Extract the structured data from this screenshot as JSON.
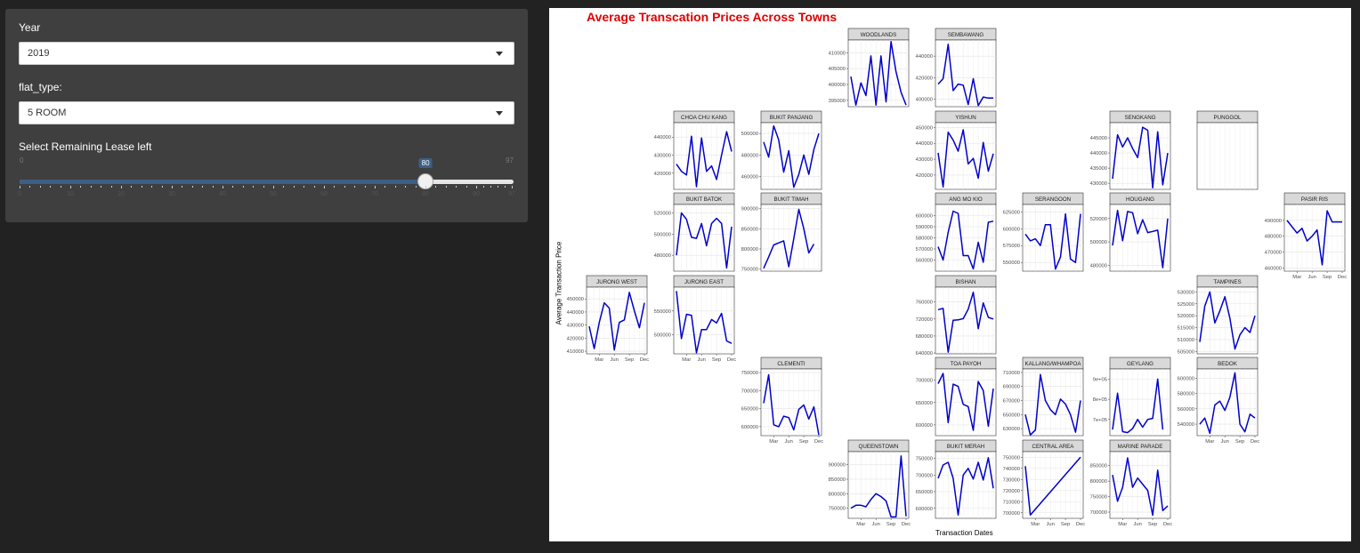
{
  "sidebar": {
    "year_label": "Year",
    "year_value": "2019",
    "flat_type_label": "flat_type:",
    "flat_type_value": "5 ROOM",
    "lease_label": "Select Remaining Lease left",
    "lease_min": 0,
    "lease_max": 97,
    "lease_value": 80,
    "lease_grid": [
      "0",
      "10",
      "20",
      "30",
      "40",
      "50",
      "60",
      "70",
      "80",
      "90",
      "97"
    ]
  },
  "chart_data": {
    "type": "line",
    "title": "Average Transcation Prices Across Towns",
    "xlabel": "Transaction Dates",
    "ylabel": "Average Transaction Price",
    "series_color": "#0000cc",
    "x_ticks": [
      "Mar",
      "Jun",
      "Sep",
      "Dec"
    ],
    "facets": [
      {
        "name": "WOODLANDS",
        "col": 3,
        "row": 0,
        "ylim": [
          393000,
          414000
        ],
        "yticks": [
          395000,
          400000,
          405000,
          410000
        ],
        "yfmt": "n",
        "xaxis": false,
        "values": [
          402500,
          393500,
          400500,
          396500,
          409000,
          393500,
          409000,
          394500,
          413500,
          404000,
          397500,
          393500
        ]
      },
      {
        "name": "SEMBAWANG",
        "col": 4,
        "row": 0,
        "ylim": [
          393000,
          455000
        ],
        "yticks": [
          400000,
          420000,
          440000
        ],
        "yfmt": "n",
        "xaxis": false,
        "values": [
          414000,
          419000,
          451000,
          408000,
          414000,
          413000,
          395000,
          419000,
          394000,
          402000,
          401000,
          401000
        ]
      },
      {
        "name": "CHOA CHU KANG",
        "col": 1,
        "row": 1,
        "ylim": [
          411000,
          448000
        ],
        "yticks": [
          420000,
          430000,
          440000
        ],
        "yfmt": "n",
        "xaxis": false,
        "values": [
          425000,
          421000,
          419000,
          440500,
          412500,
          439500,
          421000,
          424000,
          416500,
          430000,
          443000,
          432000
        ]
      },
      {
        "name": "BUKIT PANJANG",
        "col": 2,
        "row": 1,
        "ylim": [
          448000,
          510000
        ],
        "yticks": [
          460000,
          480000,
          500000
        ],
        "yfmt": "n",
        "xaxis": false,
        "values": [
          492000,
          478000,
          507000,
          494000,
          464000,
          484000,
          450000,
          462000,
          480000,
          462000,
          485000,
          500000
        ]
      },
      {
        "name": "YISHUN",
        "col": 4,
        "row": 1,
        "ylim": [
          411000,
          453000
        ],
        "yticks": [
          420000,
          430000,
          440000,
          450000
        ],
        "yfmt": "n",
        "xaxis": false,
        "values": [
          434000,
          412500,
          447000,
          442000,
          435000,
          448500,
          427000,
          430500,
          418000,
          440500,
          422500,
          433500
        ]
      },
      {
        "name": "SENGKANG",
        "col": 6,
        "row": 1,
        "ylim": [
          428000,
          450000
        ],
        "yticks": [
          430000,
          435000,
          440000,
          445000
        ],
        "yfmt": "n",
        "xaxis": false,
        "values": [
          431500,
          446000,
          442000,
          445000,
          441500,
          438500,
          448500,
          447500,
          428500,
          447000,
          429500,
          440000
        ]
      },
      {
        "name": "PUNGGOL",
        "col": 7,
        "row": 1,
        "ylim": [
          0,
          1
        ],
        "yticks": [],
        "yfmt": "n",
        "xaxis": false,
        "values": []
      },
      {
        "name": "BUKIT BATOK",
        "col": 1,
        "row": 2,
        "ylim": [
          465000,
          528000
        ],
        "yticks": [
          480000,
          500000,
          520000
        ],
        "yfmt": "n",
        "xaxis": false,
        "values": [
          480000,
          520000,
          514000,
          497000,
          496000,
          510000,
          489000,
          510000,
          515000,
          510000,
          468000,
          507000
        ]
      },
      {
        "name": "BUKIT TIMAH",
        "col": 2,
        "row": 2,
        "ylim": [
          745000,
          910000
        ],
        "yticks": [
          750000,
          800000,
          850000,
          900000
        ],
        "yfmt": "n",
        "xaxis": false,
        "values": [
          752000,
          780000,
          810000,
          815000,
          820000,
          756000,
          825000,
          898000,
          850000,
          790000,
          812000,
          null
        ]
      },
      {
        "name": "ANG MO KIO",
        "col": 4,
        "row": 2,
        "ylim": [
          550000,
          610000
        ],
        "yticks": [
          560000,
          570000,
          580000,
          590000,
          600000
        ],
        "yfmt": "n",
        "xaxis": false,
        "values": [
          572000,
          560000,
          585000,
          604000,
          602000,
          564000,
          564000,
          552000,
          576000,
          558000,
          594000,
          595000
        ]
      },
      {
        "name": "SERANGOON",
        "col": 5,
        "row": 2,
        "ylim": [
          537000,
          636000
        ],
        "yticks": [
          550000,
          575000,
          600000,
          625000
        ],
        "yfmt": "n",
        "xaxis": false,
        "values": [
          592000,
          582000,
          585000,
          575000,
          606000,
          606000,
          540000,
          558000,
          622000,
          555000,
          550000,
          622000
        ]
      },
      {
        "name": "HOUGANG",
        "col": 6,
        "row": 2,
        "ylim": [
          475000,
          532000
        ],
        "yticks": [
          480000,
          500000,
          520000
        ],
        "yfmt": "n",
        "xaxis": false,
        "values": [
          497000,
          527000,
          501000,
          526000,
          525000,
          507000,
          519000,
          508000,
          509000,
          510000,
          478000,
          520000
        ]
      },
      {
        "name": "PASIR RIS",
        "col": 8,
        "row": 2,
        "ylim": [
          458000,
          500000
        ],
        "yticks": [
          460000,
          470000,
          480000,
          490000
        ],
        "yfmt": "n",
        "xaxis": true,
        "values": [
          490000,
          486000,
          482000,
          485000,
          477000,
          480000,
          484000,
          462000,
          496000,
          489000,
          489000,
          489000
        ]
      },
      {
        "name": "JURONG WEST",
        "col": 0,
        "row": 3,
        "ylim": [
          408000,
          459000
        ],
        "yticks": [
          410000,
          420000,
          430000,
          440000,
          450000
        ],
        "yfmt": "n",
        "xaxis": true,
        "values": [
          429000,
          412000,
          432000,
          447000,
          443000,
          411000,
          432000,
          434000,
          455000,
          441000,
          428000,
          447000
        ]
      },
      {
        "name": "JURONG EAST",
        "col": 1,
        "row": 3,
        "ylim": [
          460000,
          600000
        ],
        "yticks": [
          500000,
          550000
        ],
        "yfmt": "n",
        "xaxis": true,
        "values": [
          592000,
          492000,
          543000,
          541000,
          462000,
          511000,
          511000,
          532000,
          525000,
          545000,
          487000,
          482000
        ]
      },
      {
        "name": "BISHAN",
        "col": 4,
        "row": 3,
        "ylim": [
          638000,
          795000
        ],
        "yticks": [
          640000,
          680000,
          720000,
          760000
        ],
        "yfmt": "n",
        "xaxis": false,
        "values": [
          742000,
          745000,
          642000,
          717000,
          718000,
          721000,
          743000,
          783000,
          697000,
          758000,
          724000,
          720000
        ]
      },
      {
        "name": "TAMPINES",
        "col": 7,
        "row": 3,
        "ylim": [
          504000,
          532000
        ],
        "yticks": [
          505000,
          510000,
          515000,
          520000,
          525000,
          530000
        ],
        "yfmt": "n",
        "xaxis": false,
        "values": [
          509000,
          524000,
          530000,
          517000,
          522000,
          528000,
          519000,
          506000,
          512000,
          515000,
          513000,
          520000
        ]
      },
      {
        "name": "CLEMENTI",
        "col": 2,
        "row": 4,
        "ylim": [
          575000,
          760000
        ],
        "yticks": [
          600000,
          650000,
          700000,
          750000
        ],
        "yfmt": "n",
        "xaxis": true,
        "values": [
          665000,
          744000,
          605000,
          600000,
          629000,
          625000,
          591000,
          648000,
          660000,
          621000,
          655000,
          577000
        ]
      },
      {
        "name": "TOA PAYOH",
        "col": 4,
        "row": 4,
        "ylim": [
          576000,
          725000
        ],
        "yticks": [
          600000,
          650000,
          700000
        ],
        "yfmt": "n",
        "xaxis": false,
        "values": [
          692000,
          715000,
          605000,
          691000,
          686000,
          646000,
          641000,
          588000,
          697000,
          677000,
          597000,
          681000
        ]
      },
      {
        "name": "KALLANG/WHAMPOA",
        "col": 5,
        "row": 4,
        "ylim": [
          620000,
          715000
        ],
        "yticks": [
          630000,
          650000,
          670000,
          690000,
          710000
        ],
        "yfmt": "n",
        "xaxis": false,
        "values": [
          650000,
          621000,
          628000,
          707000,
          670000,
          657000,
          650000,
          672000,
          665000,
          650000,
          625000,
          670000
        ]
      },
      {
        "name": "GEYLANG",
        "col": 6,
        "row": 4,
        "ylim": [
          620000,
          950000
        ],
        "yticks": [
          700000,
          800000,
          900000
        ],
        "yfmt": "e",
        "xaxis": false,
        "values": [
          650000,
          830000,
          640000,
          635000,
          655000,
          700000,
          662000,
          700000,
          706000,
          900000,
          650000,
          null
        ]
      },
      {
        "name": "BEDOK",
        "col": 7,
        "row": 4,
        "ylim": [
          525000,
          612000
        ],
        "yticks": [
          540000,
          560000,
          580000,
          600000
        ],
        "yfmt": "n",
        "xaxis": true,
        "values": [
          540000,
          548000,
          528000,
          565000,
          570000,
          558000,
          575000,
          607000,
          540000,
          530000,
          553000,
          548000
        ]
      },
      {
        "name": "QUEENSTOWN",
        "col": 3,
        "row": 5,
        "ylim": [
          715000,
          945000
        ],
        "yticks": [
          750000,
          800000,
          850000,
          900000
        ],
        "yfmt": "n",
        "xaxis": true,
        "values": [
          750000,
          760000,
          760000,
          755000,
          780000,
          800000,
          790000,
          775000,
          720000,
          720000,
          930000,
          722000
        ]
      },
      {
        "name": "BUKIT MERAH",
        "col": 4,
        "row": 5,
        "ylim": [
          570000,
          770000
        ],
        "yticks": [
          600000,
          650000,
          700000,
          750000
        ],
        "yfmt": "n",
        "xaxis": false,
        "values": [
          690000,
          730000,
          738000,
          690000,
          580000,
          700000,
          720000,
          688000,
          738000,
          685000,
          752000,
          660000
        ]
      },
      {
        "name": "CENTRAL AREA",
        "col": 5,
        "row": 5,
        "ylim": [
          695000,
          755000
        ],
        "yticks": [
          700000,
          710000,
          720000,
          730000,
          740000,
          750000
        ],
        "yfmt": "n",
        "xaxis": true,
        "values": [
          742000,
          698000,
          null,
          null,
          null,
          null,
          null,
          null,
          null,
          null,
          null,
          750000
        ]
      },
      {
        "name": "MARINE PARADE",
        "col": 6,
        "row": 5,
        "ylim": [
          680000,
          895000
        ],
        "yticks": [
          700000,
          750000,
          800000,
          850000
        ],
        "yfmt": "n",
        "xaxis": true,
        "values": [
          820000,
          735000,
          780000,
          875000,
          780000,
          810000,
          790000,
          770000,
          690000,
          835000,
          705000,
          720000
        ]
      }
    ]
  }
}
